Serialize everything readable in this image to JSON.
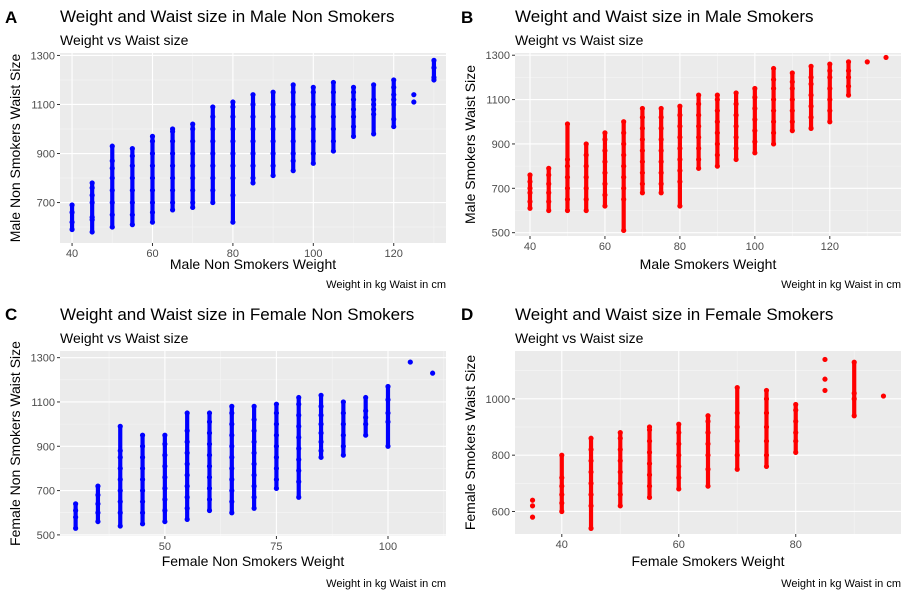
{
  "chart_data": [
    {
      "type": "scatter",
      "tag": "A",
      "title": "Weight and Waist size in Male Non Smokers",
      "subtitle": "Weight vs Waist size",
      "xlabel": "Male Non Smokers Weight",
      "ylabel": "Male Non Smokers Waist Size",
      "caption": "Weight in kg Waist in cm",
      "color": "#0000ff",
      "grid": true,
      "xlim": [
        37,
        133
      ],
      "ylim": [
        535,
        1310
      ],
      "xticks": [
        40,
        60,
        80,
        100,
        120
      ],
      "yticks": [
        700,
        900,
        1100,
        1300
      ],
      "series": [
        {
          "values": [
            {
              "x": 40,
              "y": [
                590,
                620,
                660,
                690
              ]
            },
            {
              "x": 45,
              "y": [
                580,
                630,
                640,
                700,
                730,
                760,
                780
              ]
            },
            {
              "x": 50,
              "y": [
                600,
                650,
                700,
                750,
                800,
                840,
                870,
                930
              ]
            },
            {
              "x": 55,
              "y": [
                610,
                650,
                700,
                750,
                800,
                850,
                890,
                920
              ]
            },
            {
              "x": 60,
              "y": [
                620,
                660,
                700,
                750,
                800,
                850,
                900,
                950,
                970
              ]
            },
            {
              "x": 65,
              "y": [
                670,
                700,
                750,
                800,
                850,
                900,
                950,
                990,
                1000
              ]
            },
            {
              "x": 70,
              "y": [
                680,
                700,
                750,
                800,
                850,
                900,
                950,
                1000,
                1020
              ]
            },
            {
              "x": 75,
              "y": [
                700,
                750,
                800,
                850,
                900,
                950,
                1000,
                1050,
                1090
              ]
            },
            {
              "x": 80,
              "y": [
                620,
                730,
                800,
                850,
                900,
                950,
                1000,
                1050,
                1090,
                1110
              ]
            },
            {
              "x": 85,
              "y": [
                780,
                800,
                850,
                900,
                950,
                1000,
                1050,
                1100,
                1140
              ]
            },
            {
              "x": 90,
              "y": [
                810,
                850,
                900,
                950,
                1000,
                1050,
                1100,
                1150
              ]
            },
            {
              "x": 95,
              "y": [
                830,
                870,
                900,
                950,
                1000,
                1050,
                1100,
                1150,
                1180
              ]
            },
            {
              "x": 100,
              "y": [
                860,
                900,
                950,
                1000,
                1050,
                1100,
                1150,
                1170
              ]
            },
            {
              "x": 105,
              "y": [
                910,
                950,
                1000,
                1050,
                1100,
                1150,
                1190
              ]
            },
            {
              "x": 110,
              "y": [
                970,
                1010,
                1050,
                1080,
                1120,
                1150,
                1170
              ]
            },
            {
              "x": 115,
              "y": [
                980,
                1060,
                1080,
                1100,
                1120,
                1180
              ]
            },
            {
              "x": 120,
              "y": [
                1010,
                1040,
                1100,
                1120,
                1140,
                1170,
                1200
              ]
            },
            {
              "x": 125,
              "y": [
                1110,
                1140
              ]
            },
            {
              "x": 130,
              "y": [
                1200,
                1210,
                1250,
                1280
              ]
            }
          ]
        }
      ]
    },
    {
      "type": "scatter",
      "tag": "B",
      "title": "Weight and Waist size in Male Smokers",
      "subtitle": "Weight vs Waist size",
      "xlabel": "Male Smokers Weight",
      "ylabel": "Male Smokers Waist Size",
      "caption": "Weight in kg Waist in cm",
      "color": "#ff0000",
      "grid": true,
      "xlim": [
        36,
        139
      ],
      "ylim": [
        485,
        1310
      ],
      "xticks": [
        40,
        60,
        80,
        100,
        120
      ],
      "yticks": [
        500,
        700,
        900,
        1100,
        1300
      ],
      "series": [
        {
          "values": [
            {
              "x": 40,
              "y": [
                610,
                640,
                680,
                700,
                730,
                760
              ]
            },
            {
              "x": 45,
              "y": [
                600,
                640,
                680,
                720,
                760,
                790
              ]
            },
            {
              "x": 50,
              "y": [
                600,
                650,
                700,
                750,
                800,
                830,
                990
              ]
            },
            {
              "x": 55,
              "y": [
                600,
                650,
                700,
                750,
                800,
                850,
                900
              ]
            },
            {
              "x": 60,
              "y": [
                620,
                670,
                720,
                770,
                820,
                870,
                920,
                950
              ]
            },
            {
              "x": 65,
              "y": [
                510,
                650,
                700,
                750,
                800,
                850,
                900,
                950,
                1000
              ]
            },
            {
              "x": 70,
              "y": [
                680,
                720,
                770,
                820,
                870,
                920,
                970,
                1020,
                1060
              ]
            },
            {
              "x": 75,
              "y": [
                680,
                720,
                770,
                820,
                870,
                920,
                970,
                1020,
                1060
              ]
            },
            {
              "x": 80,
              "y": [
                620,
                730,
                780,
                830,
                880,
                930,
                980,
                1030,
                1070
              ]
            },
            {
              "x": 85,
              "y": [
                790,
                830,
                880,
                930,
                980,
                1030,
                1080,
                1120
              ]
            },
            {
              "x": 90,
              "y": [
                800,
                850,
                900,
                950,
                1000,
                1050,
                1100,
                1120
              ]
            },
            {
              "x": 95,
              "y": [
                830,
                880,
                930,
                980,
                1030,
                1080,
                1130
              ]
            },
            {
              "x": 100,
              "y": [
                860,
                910,
                960,
                1010,
                1060,
                1110,
                1150
              ]
            },
            {
              "x": 105,
              "y": [
                900,
                950,
                1000,
                1050,
                1100,
                1150,
                1190,
                1240
              ]
            },
            {
              "x": 110,
              "y": [
                960,
                1000,
                1050,
                1100,
                1150,
                1180,
                1220
              ]
            },
            {
              "x": 115,
              "y": [
                970,
                1020,
                1070,
                1120,
                1170,
                1200,
                1250
              ]
            },
            {
              "x": 120,
              "y": [
                1000,
                1050,
                1100,
                1150,
                1200,
                1230,
                1260
              ]
            },
            {
              "x": 125,
              "y": [
                1120,
                1160,
                1200,
                1230,
                1270
              ]
            },
            {
              "x": 130,
              "y": [
                1270
              ]
            },
            {
              "x": 135,
              "y": [
                1290
              ]
            }
          ]
        }
      ]
    },
    {
      "type": "scatter",
      "tag": "C",
      "title": "Weight and Waist size in Female Non Smokers",
      "subtitle": "Weight vs Waist size",
      "xlabel": "Female Non Smokers Weight",
      "ylabel": "Female Non Smokers Waist Size",
      "caption": "Weight in kg Waist in cm",
      "color": "#0000ff",
      "grid": true,
      "xlim": [
        26.5,
        113
      ],
      "ylim": [
        495,
        1330
      ],
      "xticks": [
        50,
        75,
        100
      ],
      "yticks": [
        500,
        700,
        900,
        1100,
        1300
      ],
      "series": [
        {
          "values": [
            {
              "x": 30,
              "y": [
                530,
                580,
                610,
                640
              ]
            },
            {
              "x": 35,
              "y": [
                560,
                600,
                640,
                680,
                720
              ]
            },
            {
              "x": 40,
              "y": [
                540,
                600,
                650,
                700,
                750,
                800,
                850,
                880,
                990
              ]
            },
            {
              "x": 45,
              "y": [
                550,
                600,
                650,
                700,
                750,
                800,
                850,
                900,
                950
              ]
            },
            {
              "x": 50,
              "y": [
                560,
                610,
                660,
                710,
                760,
                810,
                860,
                910,
                950
              ]
            },
            {
              "x": 55,
              "y": [
                570,
                620,
                670,
                720,
                770,
                820,
                870,
                920,
                970,
                1050
              ]
            },
            {
              "x": 60,
              "y": [
                610,
                660,
                710,
                760,
                810,
                860,
                910,
                960,
                1010,
                1050
              ]
            },
            {
              "x": 65,
              "y": [
                600,
                650,
                700,
                750,
                800,
                850,
                900,
                950,
                1000,
                1050,
                1080
              ]
            },
            {
              "x": 70,
              "y": [
                620,
                670,
                720,
                770,
                820,
                870,
                920,
                970,
                1020,
                1080
              ]
            },
            {
              "x": 75,
              "y": [
                710,
                750,
                800,
                850,
                900,
                950,
                1000,
                1050,
                1090
              ]
            },
            {
              "x": 80,
              "y": [
                670,
                740,
                790,
                840,
                890,
                940,
                990,
                1040,
                1090,
                1120
              ]
            },
            {
              "x": 85,
              "y": [
                850,
                880,
                920,
                960,
                1000,
                1040,
                1080,
                1130
              ]
            },
            {
              "x": 90,
              "y": [
                860,
                900,
                950,
                1000,
                1050,
                1100
              ]
            },
            {
              "x": 95,
              "y": [
                950,
                1000,
                1030,
                1060,
                1120
              ]
            },
            {
              "x": 100,
              "y": [
                900,
                1010,
                1050,
                1110,
                1170
              ]
            },
            {
              "x": 105,
              "y": [
                1280
              ]
            },
            {
              "x": 110,
              "y": [
                1230
              ]
            }
          ]
        }
      ]
    },
    {
      "type": "scatter",
      "tag": "D",
      "title": "Weight and Waist size in Female Smokers",
      "subtitle": "Weight vs Waist size",
      "xlabel": "Female Smokers Weight",
      "ylabel": "Female Smokers Waist Size",
      "caption": "Weight in kg Waist in cm",
      "color": "#ff0000",
      "grid": true,
      "xlim": [
        32,
        98
      ],
      "ylim": [
        520,
        1170
      ],
      "xticks": [
        40,
        60,
        80
      ],
      "yticks": [
        600,
        800,
        1000
      ],
      "series": [
        {
          "values": [
            {
              "x": 35,
              "y": [
                580,
                620,
                640
              ]
            },
            {
              "x": 40,
              "y": [
                600,
                630,
                660,
                690,
                720,
                800
              ]
            },
            {
              "x": 45,
              "y": [
                540,
                620,
                660,
                700,
                740,
                780,
                820,
                860
              ]
            },
            {
              "x": 50,
              "y": [
                620,
                660,
                700,
                740,
                780,
                820,
                860,
                880
              ]
            },
            {
              "x": 55,
              "y": [
                650,
                690,
                730,
                770,
                810,
                850,
                890,
                900
              ]
            },
            {
              "x": 60,
              "y": [
                680,
                720,
                760,
                800,
                840,
                880,
                910
              ]
            },
            {
              "x": 65,
              "y": [
                690,
                750,
                800,
                840,
                880,
                920,
                940
              ]
            },
            {
              "x": 70,
              "y": [
                750,
                800,
                850,
                900,
                950,
                1040
              ]
            },
            {
              "x": 75,
              "y": [
                760,
                800,
                850,
                900,
                950,
                1000,
                1030
              ]
            },
            {
              "x": 80,
              "y": [
                810,
                850,
                880,
                920,
                960,
                980
              ]
            },
            {
              "x": 85,
              "y": [
                1030,
                1070,
                1140
              ]
            },
            {
              "x": 90,
              "y": [
                940,
                1000,
                1020,
                1130
              ]
            },
            {
              "x": 95,
              "y": [
                1010
              ]
            }
          ]
        }
      ]
    }
  ]
}
